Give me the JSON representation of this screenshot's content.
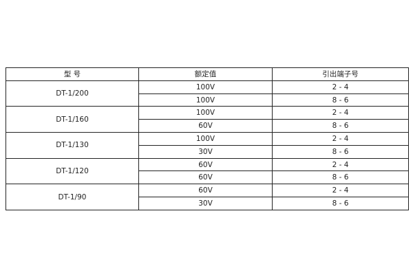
{
  "table": {
    "headers": [
      "型 号",
      "额定值",
      "引出端子号"
    ],
    "groups": [
      {
        "model": "DT-1/200",
        "rows": [
          {
            "rating": "100V",
            "terminal": "2 - 4"
          },
          {
            "rating": "100V",
            "terminal": "8 - 6"
          }
        ]
      },
      {
        "model": "DT-1/160",
        "rows": [
          {
            "rating": "100V",
            "terminal": "2 - 4"
          },
          {
            "rating": "60V",
            "terminal": "8 - 6"
          }
        ]
      },
      {
        "model": "DT-1/130",
        "rows": [
          {
            "rating": "100V",
            "terminal": "2 - 4"
          },
          {
            "rating": "30V",
            "terminal": "8 - 6"
          }
        ]
      },
      {
        "model": "DT-1/120",
        "rows": [
          {
            "rating": "60V",
            "terminal": "2 - 4"
          },
          {
            "rating": "60V",
            "terminal": "8 - 6"
          }
        ]
      },
      {
        "model": "DT-1/90",
        "rows": [
          {
            "rating": "60V",
            "terminal": "2 - 4"
          },
          {
            "rating": "30V",
            "terminal": "8 - 6"
          }
        ]
      }
    ]
  }
}
